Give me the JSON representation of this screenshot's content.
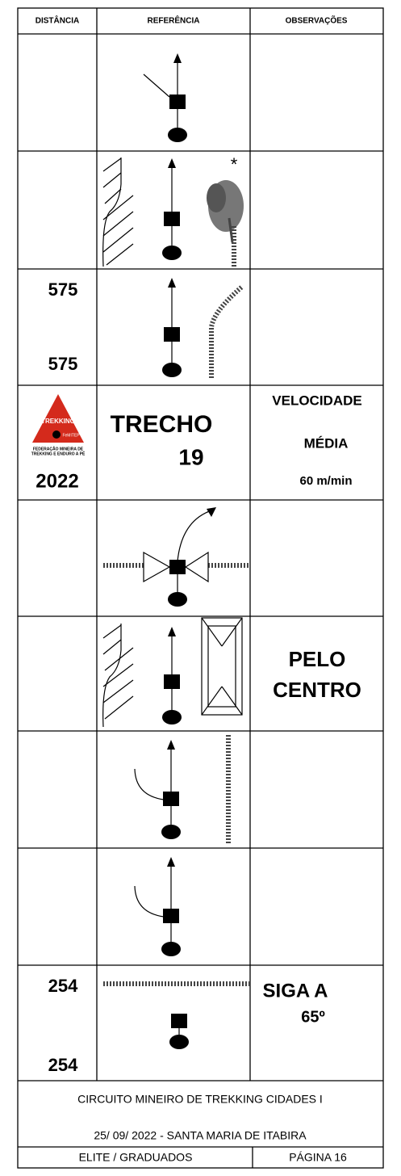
{
  "table": {
    "header": [
      "DISTÂNCIA",
      "REFERÊNCIA",
      "OBSERVAÇÕES"
    ],
    "row_3": {
      "distance": [
        "575",
        "575"
      ]
    },
    "row_4": {
      "logo": {
        "name": "TREKKING",
        "badge": "FeMITEP",
        "caption": [
          "FEDERAÇÃO MINEIRA DE",
          "TREKKING E ENDURO A PÉ"
        ]
      },
      "distance": "2022",
      "reference": [
        "TRECHO",
        "19"
      ],
      "observations": [
        "VELOCIDADE",
        "MÉDIA",
        "60 m/min"
      ]
    },
    "row_6": {
      "observations": [
        "PELO",
        "CENTRO"
      ]
    },
    "row_9": {
      "distance": [
        "254",
        "254"
      ],
      "observations": [
        "SIGA A",
        "65º"
      ]
    }
  },
  "footer": {
    "lines": [
      "CIRCUITO MINEIRO DE TREKKING CIDADES I",
      "25/ 09/ 2022  - SANTA MARIA DE ITABIRA"
    ],
    "category": "ELITE / GRADUADOS",
    "page": "PÁGINA 16"
  }
}
